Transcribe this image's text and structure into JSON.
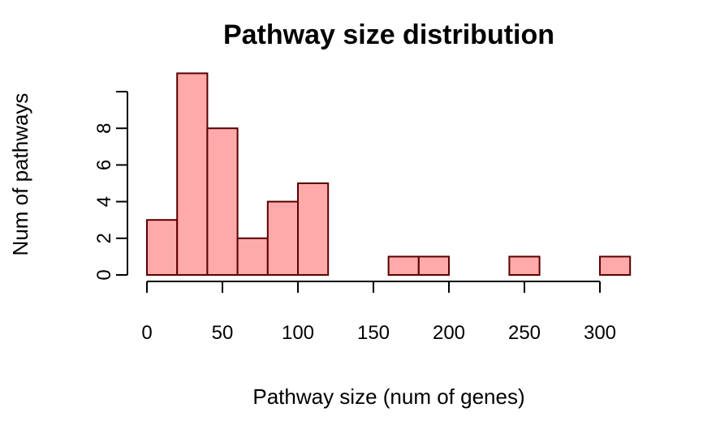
{
  "chart_data": {
    "type": "histogram",
    "title": "Pathway size distribution",
    "x_label": "Pathway size (num of genes)",
    "y_label": "Num of pathways",
    "bins": [
      0,
      20,
      40,
      60,
      80,
      100,
      120,
      140,
      160,
      180,
      200,
      220,
      240,
      260,
      280,
      300,
      320
    ],
    "values": [
      3,
      11,
      8,
      2,
      4,
      5,
      0,
      0,
      1,
      1,
      0,
      0,
      1,
      0,
      0,
      1
    ],
    "color": "#ffaaaa",
    "edgecolor": "#5a0000",
    "xlim": [
      0,
      300
    ],
    "xticks": [
      0,
      50,
      100,
      150,
      200,
      250,
      300
    ],
    "ylim": [
      0,
      10
    ],
    "yticks": [
      0,
      2,
      4,
      6,
      8
    ]
  }
}
